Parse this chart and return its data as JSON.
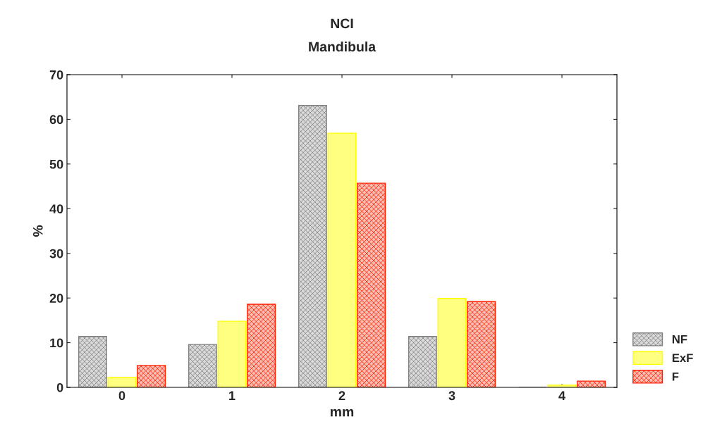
{
  "chart_data": {
    "type": "bar",
    "title": "NCI",
    "subtitle": "Mandibula",
    "xlabel": "mm",
    "ylabel": "%",
    "categories": [
      "0",
      "1",
      "2",
      "3",
      "4"
    ],
    "series": [
      {
        "name": "NF",
        "color": "#808080",
        "values": [
          11.4,
          9.6,
          63.1,
          11.4,
          0
        ]
      },
      {
        "name": "ExF",
        "color": "#ffff00",
        "values": [
          2.2,
          14.8,
          56.9,
          19.9,
          0.5
        ]
      },
      {
        "name": "F",
        "color": "#ff2000",
        "values": [
          4.9,
          18.6,
          45.7,
          19.2,
          1.4
        ]
      }
    ],
    "ylim": [
      0,
      70
    ],
    "yticks": [
      0,
      10,
      20,
      30,
      40,
      50,
      60,
      70
    ],
    "grid": false,
    "legend": "bottom right"
  }
}
